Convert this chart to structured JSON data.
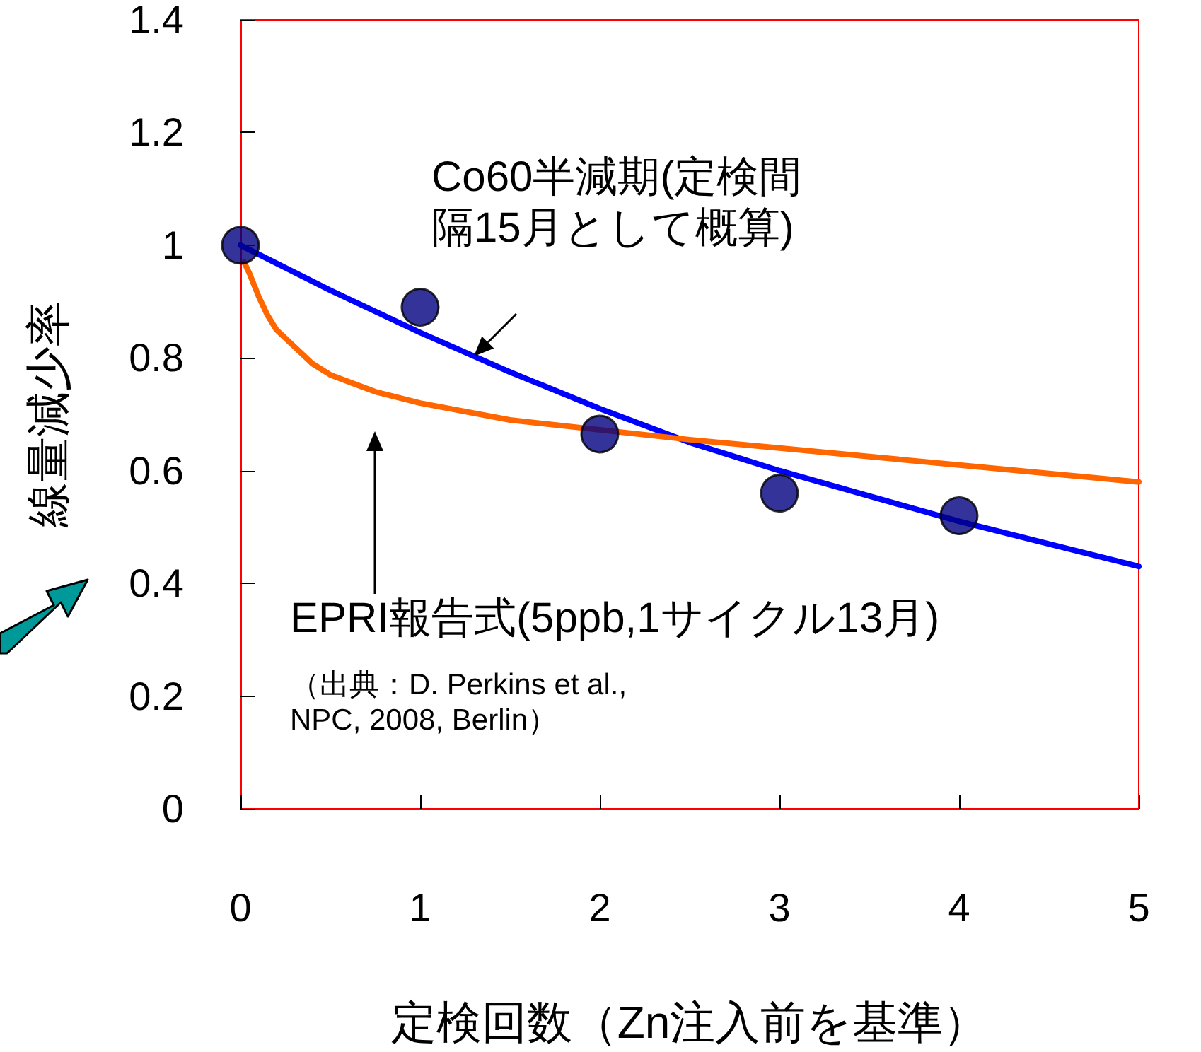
{
  "chart_data": {
    "type": "scatter",
    "xlabel": "定検回数（Zn注入前を基準）",
    "ylabel": "線量減少率",
    "xlim": [
      0,
      5
    ],
    "xticks": [
      0,
      1,
      2,
      3,
      4,
      5
    ],
    "ylim": [
      0,
      1.4
    ],
    "yticks": [
      0,
      0.2,
      0.4,
      0.6,
      0.8,
      1,
      1.2,
      1.4
    ],
    "grid": false,
    "series": [
      {
        "type": "line",
        "color": "#0000ff",
        "marker": "none",
        "x": [
          0,
          0.5,
          1,
          1.5,
          2,
          2.5,
          3,
          3.5,
          4,
          4.5,
          5
        ],
        "values": [
          1,
          0.92,
          0.845,
          0.775,
          0.71,
          0.65,
          0.6,
          0.555,
          0.51,
          0.47,
          0.43
        ]
      },
      {
        "type": "line",
        "color": "#ff6600",
        "marker": "none",
        "x": [
          0.02,
          0.05,
          0.1,
          0.15,
          0.2,
          0.3,
          0.4,
          0.5,
          0.75,
          1,
          1.5,
          2,
          2.5,
          3,
          3.5,
          4,
          4.5,
          5
        ],
        "values": [
          0.97,
          0.95,
          0.91,
          0.876,
          0.85,
          0.82,
          0.79,
          0.77,
          0.74,
          0.72,
          0.69,
          null,
          0.655,
          0.64,
          0.625,
          0.61,
          0.595,
          0.58
        ]
      },
      {
        "color": "#000080",
        "marker": "circle",
        "x": [
          0,
          1,
          2,
          3,
          4
        ],
        "values": [
          1,
          0.89,
          0.665,
          0.56,
          0.52
        ]
      }
    ],
    "annotations": [
      "Co60半減期(定検間隔15月として概算)",
      "EPRI報告式(5ppb,1サイクル13月)",
      "（出典：D. Perkins et al.,\nNPC, 2008, Berlin）"
    ]
  }
}
